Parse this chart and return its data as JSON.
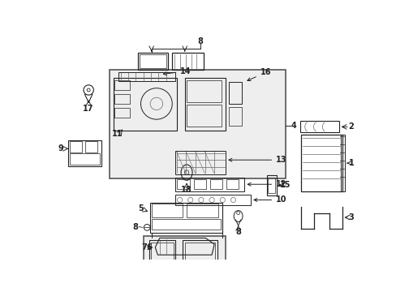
{
  "bg_color": "#ffffff",
  "fig_width": 4.89,
  "fig_height": 3.6,
  "dpi": 100,
  "gray": "#222222",
  "lgray": "#666666",
  "box_fill": "#eeeeee"
}
